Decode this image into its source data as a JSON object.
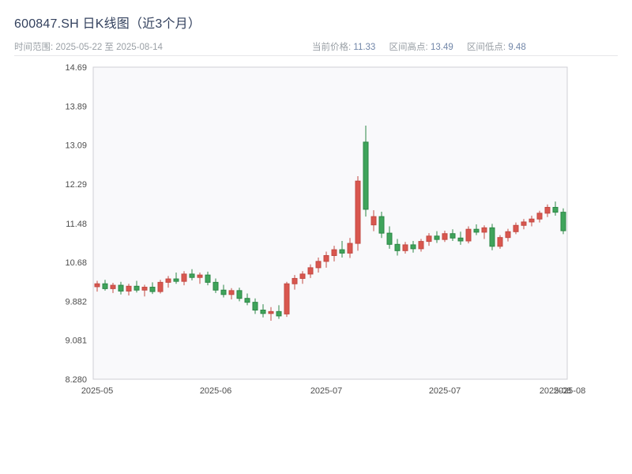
{
  "header": {
    "title": "600847.SH 日K线图（近3个月）",
    "range_label": "时间范围:",
    "range_value": "2025-05-22 至 2025-08-14",
    "stats": [
      {
        "label": "当前价格:",
        "value": "11.33"
      },
      {
        "label": "区间高点:",
        "value": "13.49"
      },
      {
        "label": "区间低点:",
        "value": "9.48"
      }
    ]
  },
  "colors": {
    "up": "#d9574f",
    "up_border": "#c24a43",
    "down": "#3fa45b",
    "down_border": "#2c8746",
    "plot_bg": "#f9f9fb",
    "plot_border": "#cfcfd4",
    "axis_text": "#4d4d4d",
    "title": "#33415e",
    "meta_label": "#9aa0a6",
    "meta_value": "#7186a8",
    "page_bg": "#ffffff"
  },
  "chart_data": {
    "type": "candlestick",
    "title": "600847.SH 日K线图（近3个月）",
    "symbol": "600847.SH",
    "period": "daily",
    "date_range": [
      "2025-05-22",
      "2025-08-14"
    ],
    "current_price": 11.33,
    "range_high": 13.49,
    "range_low": 9.48,
    "ylim": [
      8.28,
      14.69
    ],
    "grid": false,
    "y_ticks": [
      {
        "v": 14.69,
        "label": "14.69"
      },
      {
        "v": 13.89,
        "label": "13.89"
      },
      {
        "v": 13.09,
        "label": "13.09"
      },
      {
        "v": 12.29,
        "label": "12.29"
      },
      {
        "v": 11.48,
        "label": "11.48"
      },
      {
        "v": 10.68,
        "label": "10.68"
      },
      {
        "v": 9.882,
        "label": "9.882"
      },
      {
        "v": 9.081,
        "label": "9.081"
      },
      {
        "v": 8.28,
        "label": "8.280"
      }
    ],
    "x_ticks": [
      {
        "i": 0,
        "label": "2025-05"
      },
      {
        "i": 15,
        "label": "2025-06"
      },
      {
        "i": 29,
        "label": "2025-07"
      },
      {
        "i": 44,
        "label": "2025-07"
      },
      {
        "i": 58,
        "label": "2025-08"
      }
    ],
    "x_end_label": "2025-08",
    "columns": [
      "date",
      "open",
      "high",
      "low",
      "close"
    ],
    "candles": [
      [
        "2025-05-22",
        10.18,
        10.3,
        10.08,
        10.24
      ],
      [
        "2025-05-23",
        10.24,
        10.32,
        10.1,
        10.14
      ],
      [
        "2025-05-26",
        10.14,
        10.26,
        10.05,
        10.21
      ],
      [
        "2025-05-27",
        10.21,
        10.28,
        10.02,
        10.09
      ],
      [
        "2025-05-28",
        10.09,
        10.24,
        10.0,
        10.19
      ],
      [
        "2025-05-29",
        10.19,
        10.3,
        10.06,
        10.11
      ],
      [
        "2025-05-30",
        10.11,
        10.22,
        9.98,
        10.17
      ],
      [
        "2025-06-03",
        10.17,
        10.27,
        10.03,
        10.08
      ],
      [
        "2025-06-04",
        10.08,
        10.32,
        10.04,
        10.27
      ],
      [
        "2025-06-05",
        10.27,
        10.4,
        10.16,
        10.34
      ],
      [
        "2025-06-06",
        10.34,
        10.47,
        10.24,
        10.29
      ],
      [
        "2025-06-09",
        10.29,
        10.5,
        10.21,
        10.44
      ],
      [
        "2025-06-10",
        10.44,
        10.54,
        10.31,
        10.37
      ],
      [
        "2025-06-11",
        10.37,
        10.47,
        10.24,
        10.42
      ],
      [
        "2025-06-12",
        10.42,
        10.49,
        10.21,
        10.27
      ],
      [
        "2025-06-13",
        10.27,
        10.35,
        10.05,
        10.11
      ],
      [
        "2025-06-16",
        10.11,
        10.22,
        9.96,
        10.02
      ],
      [
        "2025-06-17",
        10.02,
        10.15,
        9.92,
        10.1
      ],
      [
        "2025-06-18",
        10.1,
        10.16,
        9.88,
        9.94
      ],
      [
        "2025-06-19",
        9.94,
        10.04,
        9.8,
        9.86
      ],
      [
        "2025-06-20",
        9.86,
        9.94,
        9.62,
        9.7
      ],
      [
        "2025-06-23",
        9.7,
        9.82,
        9.55,
        9.63
      ],
      [
        "2025-06-24",
        9.63,
        9.76,
        9.48,
        9.67
      ],
      [
        "2025-06-25",
        9.67,
        9.8,
        9.52,
        9.58
      ],
      [
        "2025-06-26",
        9.62,
        10.28,
        9.56,
        10.24
      ],
      [
        "2025-06-27",
        10.24,
        10.42,
        10.12,
        10.35
      ],
      [
        "2025-06-30",
        10.35,
        10.5,
        10.24,
        10.44
      ],
      [
        "2025-07-01",
        10.44,
        10.64,
        10.36,
        10.57
      ],
      [
        "2025-07-02",
        10.57,
        10.78,
        10.47,
        10.7
      ],
      [
        "2025-07-03",
        10.7,
        10.9,
        10.57,
        10.82
      ],
      [
        "2025-07-04",
        10.82,
        11.02,
        10.7,
        10.94
      ],
      [
        "2025-07-07",
        10.94,
        11.12,
        10.78,
        10.87
      ],
      [
        "2025-07-08",
        10.87,
        11.18,
        10.77,
        11.07
      ],
      [
        "2025-07-09",
        11.07,
        12.45,
        10.92,
        12.35
      ],
      [
        "2025-07-10",
        13.15,
        13.49,
        11.62,
        11.77
      ],
      [
        "2025-07-11",
        11.45,
        11.75,
        11.32,
        11.62
      ],
      [
        "2025-07-14",
        11.62,
        11.72,
        11.18,
        11.28
      ],
      [
        "2025-07-15",
        11.28,
        11.42,
        10.96,
        11.05
      ],
      [
        "2025-07-16",
        11.05,
        11.16,
        10.82,
        10.92
      ],
      [
        "2025-07-17",
        10.92,
        11.1,
        10.86,
        11.04
      ],
      [
        "2025-07-18",
        11.04,
        11.12,
        10.88,
        10.96
      ],
      [
        "2025-07-21",
        10.96,
        11.16,
        10.9,
        11.11
      ],
      [
        "2025-07-22",
        11.11,
        11.28,
        11.02,
        11.22
      ],
      [
        "2025-07-23",
        11.22,
        11.32,
        11.08,
        11.15
      ],
      [
        "2025-07-24",
        11.15,
        11.33,
        11.1,
        11.27
      ],
      [
        "2025-07-25",
        11.27,
        11.36,
        11.12,
        11.18
      ],
      [
        "2025-07-28",
        11.18,
        11.31,
        11.04,
        11.12
      ],
      [
        "2025-07-29",
        11.12,
        11.42,
        11.07,
        11.36
      ],
      [
        "2025-07-30",
        11.36,
        11.46,
        11.24,
        11.3
      ],
      [
        "2025-07-31",
        11.3,
        11.44,
        11.16,
        11.39
      ],
      [
        "2025-08-01",
        11.39,
        11.47,
        10.93,
        11.01
      ],
      [
        "2025-08-04",
        11.01,
        11.24,
        10.96,
        11.19
      ],
      [
        "2025-08-05",
        11.19,
        11.37,
        11.11,
        11.31
      ],
      [
        "2025-08-06",
        11.31,
        11.5,
        11.26,
        11.44
      ],
      [
        "2025-08-07",
        11.44,
        11.57,
        11.36,
        11.51
      ],
      [
        "2025-08-08",
        11.51,
        11.64,
        11.42,
        11.57
      ],
      [
        "2025-08-11",
        11.57,
        11.74,
        11.5,
        11.69
      ],
      [
        "2025-08-12",
        11.69,
        11.87,
        11.61,
        11.81
      ],
      [
        "2025-08-13",
        11.81,
        11.93,
        11.64,
        11.71
      ],
      [
        "2025-08-14",
        11.71,
        11.79,
        11.26,
        11.33
      ]
    ]
  }
}
